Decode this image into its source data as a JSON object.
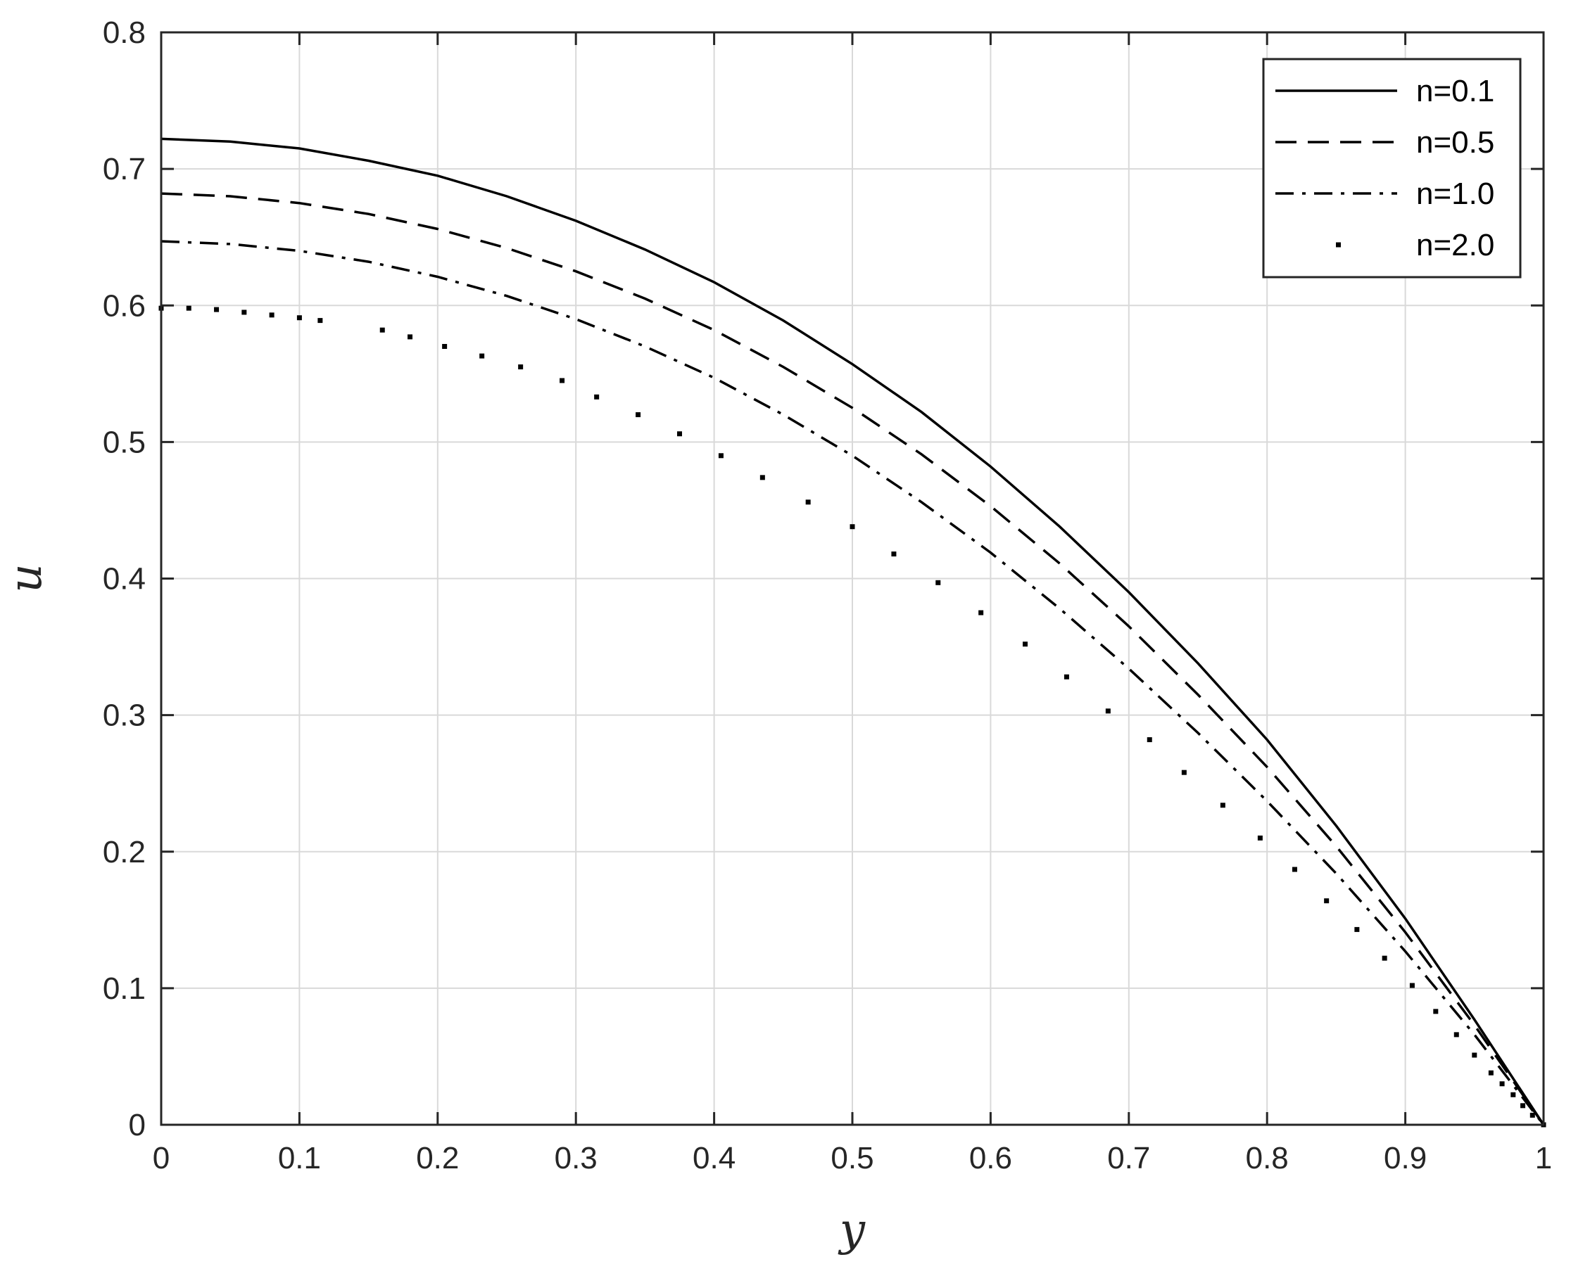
{
  "chart_data": {
    "type": "line",
    "xlabel": "y",
    "ylabel": "u",
    "xlim": [
      0,
      1
    ],
    "ylim": [
      0,
      0.8
    ],
    "grid": true,
    "legend_position": "top-right",
    "x_ticks": [
      "0",
      "0.1",
      "0.2",
      "0.3",
      "0.4",
      "0.5",
      "0.6",
      "0.7",
      "0.8",
      "0.9",
      "1"
    ],
    "y_ticks": [
      "0",
      "0.1",
      "0.2",
      "0.3",
      "0.4",
      "0.5",
      "0.6",
      "0.7",
      "0.8"
    ],
    "series": [
      {
        "name": "n=0.1",
        "style": "solid",
        "x": [
          0,
          0.05,
          0.1,
          0.15,
          0.2,
          0.25,
          0.3,
          0.35,
          0.4,
          0.45,
          0.5,
          0.55,
          0.6,
          0.65,
          0.7,
          0.75,
          0.8,
          0.85,
          0.9,
          0.95,
          1.0
        ],
        "y": [
          0.722,
          0.72,
          0.715,
          0.706,
          0.695,
          0.68,
          0.662,
          0.641,
          0.617,
          0.589,
          0.557,
          0.522,
          0.482,
          0.438,
          0.39,
          0.338,
          0.282,
          0.219,
          0.151,
          0.077,
          0.0
        ]
      },
      {
        "name": "n=0.5",
        "style": "dashed",
        "x": [
          0,
          0.05,
          0.1,
          0.15,
          0.2,
          0.25,
          0.3,
          0.35,
          0.4,
          0.45,
          0.5,
          0.55,
          0.6,
          0.65,
          0.7,
          0.75,
          0.8,
          0.85,
          0.9,
          0.95,
          1.0
        ],
        "y": [
          0.682,
          0.68,
          0.675,
          0.667,
          0.656,
          0.642,
          0.625,
          0.605,
          0.582,
          0.555,
          0.525,
          0.491,
          0.453,
          0.411,
          0.365,
          0.315,
          0.262,
          0.204,
          0.141,
          0.073,
          0.0
        ]
      },
      {
        "name": "n=1.0",
        "style": "dashdot",
        "x": [
          0,
          0.05,
          0.1,
          0.15,
          0.2,
          0.25,
          0.3,
          0.35,
          0.4,
          0.45,
          0.5,
          0.55,
          0.6,
          0.65,
          0.7,
          0.75,
          0.8,
          0.85,
          0.9,
          0.95,
          1.0
        ],
        "y": [
          0.647,
          0.645,
          0.64,
          0.632,
          0.621,
          0.607,
          0.59,
          0.57,
          0.547,
          0.52,
          0.49,
          0.456,
          0.419,
          0.378,
          0.334,
          0.287,
          0.237,
          0.184,
          0.127,
          0.066,
          0.0
        ]
      },
      {
        "name": "n=2.0",
        "style": "dotted",
        "x": [
          0,
          0.02,
          0.04,
          0.06,
          0.08,
          0.1,
          0.115,
          0.16,
          0.18,
          0.205,
          0.232,
          0.26,
          0.29,
          0.315,
          0.345,
          0.375,
          0.405,
          0.435,
          0.468,
          0.5,
          0.53,
          0.562,
          0.593,
          0.625,
          0.655,
          0.685,
          0.715,
          0.74,
          0.768,
          0.795,
          0.82,
          0.843,
          0.865,
          0.885,
          0.905,
          0.922,
          0.937,
          0.95,
          0.962,
          0.97,
          0.978,
          0.985,
          0.992,
          1.0
        ],
        "y": [
          0.598,
          0.598,
          0.597,
          0.595,
          0.593,
          0.591,
          0.589,
          0.582,
          0.577,
          0.57,
          0.563,
          0.555,
          0.545,
          0.533,
          0.52,
          0.506,
          0.49,
          0.474,
          0.456,
          0.438,
          0.418,
          0.397,
          0.375,
          0.352,
          0.328,
          0.303,
          0.282,
          0.258,
          0.234,
          0.21,
          0.187,
          0.164,
          0.143,
          0.122,
          0.102,
          0.083,
          0.066,
          0.051,
          0.038,
          0.03,
          0.022,
          0.014,
          0.007,
          0.0
        ]
      }
    ]
  }
}
